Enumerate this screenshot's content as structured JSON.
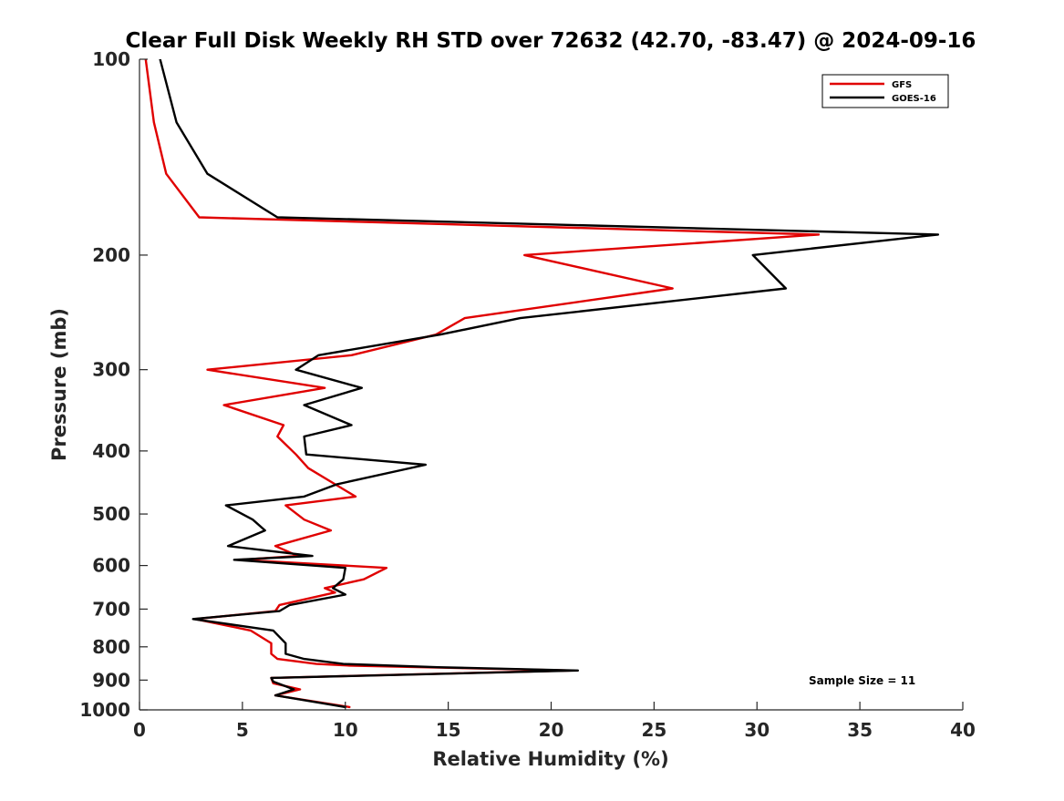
{
  "chart_data": {
    "type": "line",
    "title": "Clear Full Disk Weekly RH STD over 72632 (42.70, -83.47) @ 2024-09-16",
    "xlabel": "Relative Humidity (%)",
    "ylabel": "Pressure (mb)",
    "xlim": [
      0,
      40
    ],
    "ylim": [
      100,
      1000
    ],
    "y_scale": "log",
    "y_reversed": true,
    "x_ticks": [
      0,
      5,
      10,
      15,
      20,
      25,
      30,
      35,
      40
    ],
    "y_ticks": [
      100,
      200,
      300,
      400,
      500,
      600,
      700,
      800,
      900,
      1000
    ],
    "grid": false,
    "legend_position": "top-right",
    "annotation": "Sample Size = 11",
    "series": [
      {
        "name": "GFS",
        "color": "#e00000",
        "points": [
          [
            0.3,
            100
          ],
          [
            0.7,
            125
          ],
          [
            1.3,
            150
          ],
          [
            2.9,
            175
          ],
          [
            33.0,
            186
          ],
          [
            18.7,
            200
          ],
          [
            25.9,
            225
          ],
          [
            15.8,
            250
          ],
          [
            14.4,
            265
          ],
          [
            10.3,
            285
          ],
          [
            3.3,
            300
          ],
          [
            9.0,
            320
          ],
          [
            4.1,
            340
          ],
          [
            7.0,
            365
          ],
          [
            6.7,
            380
          ],
          [
            7.6,
            405
          ],
          [
            8.2,
            425
          ],
          [
            9.5,
            450
          ],
          [
            10.5,
            470
          ],
          [
            7.1,
            485
          ],
          [
            8.0,
            510
          ],
          [
            9.3,
            530
          ],
          [
            6.6,
            560
          ],
          [
            7.7,
            580
          ],
          [
            4.9,
            588
          ],
          [
            12.0,
            605
          ],
          [
            10.9,
            630
          ],
          [
            9.0,
            650
          ],
          [
            9.5,
            660
          ],
          [
            6.8,
            690
          ],
          [
            6.6,
            705
          ],
          [
            2.7,
            725
          ],
          [
            5.4,
            755
          ],
          [
            6.4,
            790
          ],
          [
            6.4,
            820
          ],
          [
            6.7,
            835
          ],
          [
            8.6,
            850
          ],
          [
            10.2,
            855
          ],
          [
            21.0,
            870
          ],
          [
            6.4,
            893
          ],
          [
            6.5,
            910
          ],
          [
            7.8,
            930
          ],
          [
            6.6,
            950
          ],
          [
            10.2,
            990
          ]
        ]
      },
      {
        "name": "GOES-16",
        "color": "#000000",
        "points": [
          [
            1.0,
            100
          ],
          [
            1.8,
            125
          ],
          [
            3.3,
            150
          ],
          [
            6.7,
            175
          ],
          [
            38.8,
            186
          ],
          [
            29.8,
            200
          ],
          [
            31.4,
            225
          ],
          [
            18.5,
            250
          ],
          [
            14.6,
            265
          ],
          [
            8.7,
            285
          ],
          [
            7.6,
            300
          ],
          [
            10.8,
            320
          ],
          [
            8.0,
            340
          ],
          [
            10.3,
            365
          ],
          [
            8.0,
            380
          ],
          [
            8.1,
            405
          ],
          [
            13.9,
            420
          ],
          [
            9.6,
            450
          ],
          [
            8.0,
            470
          ],
          [
            4.2,
            485
          ],
          [
            5.5,
            510
          ],
          [
            6.1,
            530
          ],
          [
            4.3,
            560
          ],
          [
            8.4,
            580
          ],
          [
            4.6,
            588
          ],
          [
            10.0,
            605
          ],
          [
            9.9,
            630
          ],
          [
            9.4,
            650
          ],
          [
            10.0,
            665
          ],
          [
            7.3,
            690
          ],
          [
            6.8,
            705
          ],
          [
            2.6,
            725
          ],
          [
            6.5,
            755
          ],
          [
            7.1,
            790
          ],
          [
            7.1,
            820
          ],
          [
            8.0,
            835
          ],
          [
            9.9,
            850
          ],
          [
            14.5,
            860
          ],
          [
            21.3,
            870
          ],
          [
            6.4,
            893
          ],
          [
            6.5,
            905
          ],
          [
            7.5,
            930
          ],
          [
            6.6,
            950
          ],
          [
            10.0,
            990
          ]
        ]
      }
    ]
  }
}
